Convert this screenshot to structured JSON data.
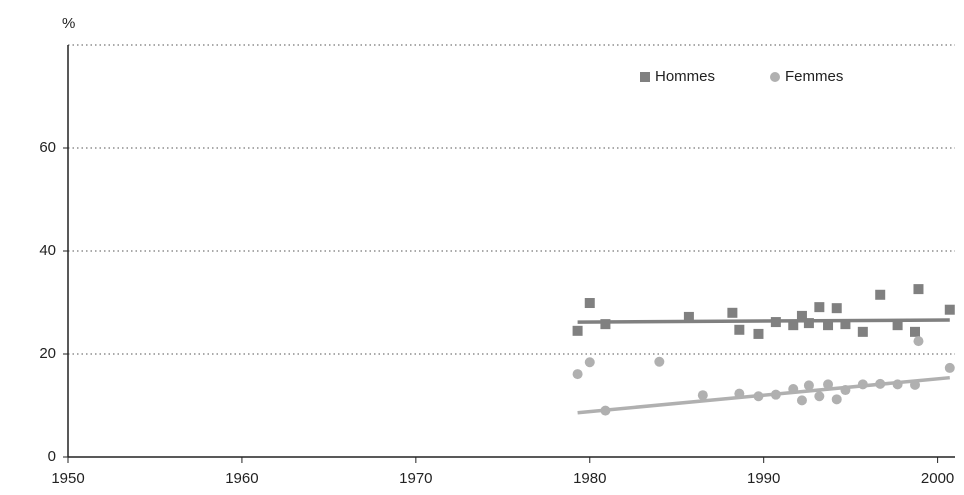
{
  "chart_data": {
    "type": "scatter",
    "ylabel": "%",
    "xlim": [
      1950,
      2001
    ],
    "xticks": [
      1950,
      1960,
      1970,
      1980,
      1990,
      2000
    ],
    "ylim": [
      0,
      80
    ],
    "yticks": [
      0,
      20,
      40,
      60
    ],
    "grid": true,
    "legend": "top-right",
    "series": [
      {
        "name": "Hommes",
        "color": "#808080",
        "marker": "square",
        "x": [
          1979.3,
          1980.0,
          1980.9,
          1985.7,
          1988.2,
          1988.6,
          1989.7,
          1990.7,
          1991.7,
          1992.2,
          1992.6,
          1993.2,
          1993.7,
          1994.2,
          1994.7,
          1995.7,
          1996.7,
          1997.7,
          1998.7,
          1998.9,
          2000.7
        ],
        "values": [
          24.5,
          29.9,
          25.8,
          27.2,
          28.0,
          24.7,
          23.9,
          26.2,
          25.6,
          27.4,
          26.0,
          29.1,
          25.6,
          28.9,
          25.8,
          24.3,
          31.5,
          25.6,
          24.3,
          32.6,
          28.6
        ],
        "trend": {
          "x": [
            1979.3,
            2000.7
          ],
          "values": [
            26.2,
            26.6
          ]
        }
      },
      {
        "name": "Femmes",
        "color": "#b0b0b0",
        "marker": "circle",
        "x": [
          1979.3,
          1980.0,
          1980.9,
          1984.0,
          1986.5,
          1988.6,
          1989.7,
          1990.7,
          1991.7,
          1992.2,
          1992.6,
          1993.2,
          1993.7,
          1994.2,
          1994.7,
          1995.7,
          1996.7,
          1997.7,
          1998.7,
          1998.9,
          2000.7
        ],
        "values": [
          16.1,
          18.4,
          9.0,
          18.5,
          12.0,
          12.3,
          11.8,
          12.1,
          13.2,
          11.0,
          13.9,
          11.8,
          14.1,
          11.2,
          13.0,
          14.1,
          14.2,
          14.1,
          14.0,
          22.5,
          17.3
        ],
        "trend": {
          "x": [
            1979.3,
            2000.7
          ],
          "values": [
            8.6,
            15.4
          ]
        }
      }
    ]
  }
}
